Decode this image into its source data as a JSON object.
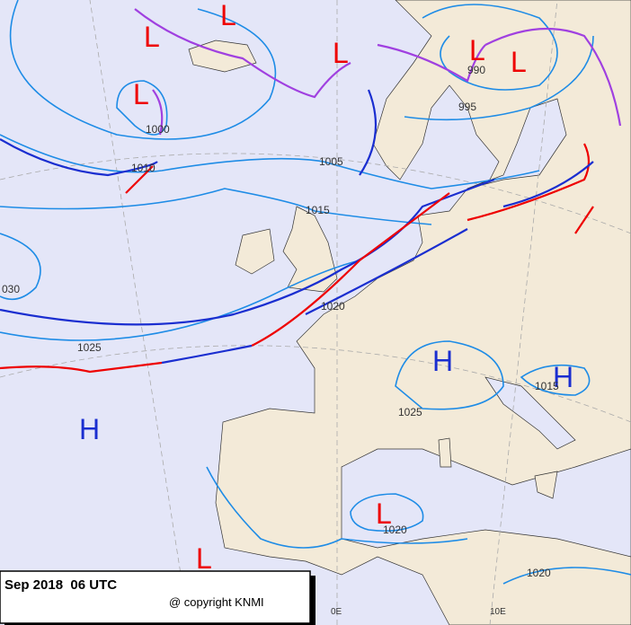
{
  "title": "Sep 2018  06 UTC",
  "copyright": "@ copyright KNMI",
  "centers": [
    "L",
    "L",
    "L",
    "L",
    "L",
    "L",
    "L",
    "L",
    "H",
    "H",
    "H"
  ],
  "isobar_labels": [
    "1000",
    "1010",
    "1005",
    "1015",
    "030",
    "1025",
    "1020",
    "995",
    "990",
    "1015",
    "1025",
    "1020",
    "1020"
  ],
  "longitude_labels": [
    "0E",
    "10E"
  ]
}
